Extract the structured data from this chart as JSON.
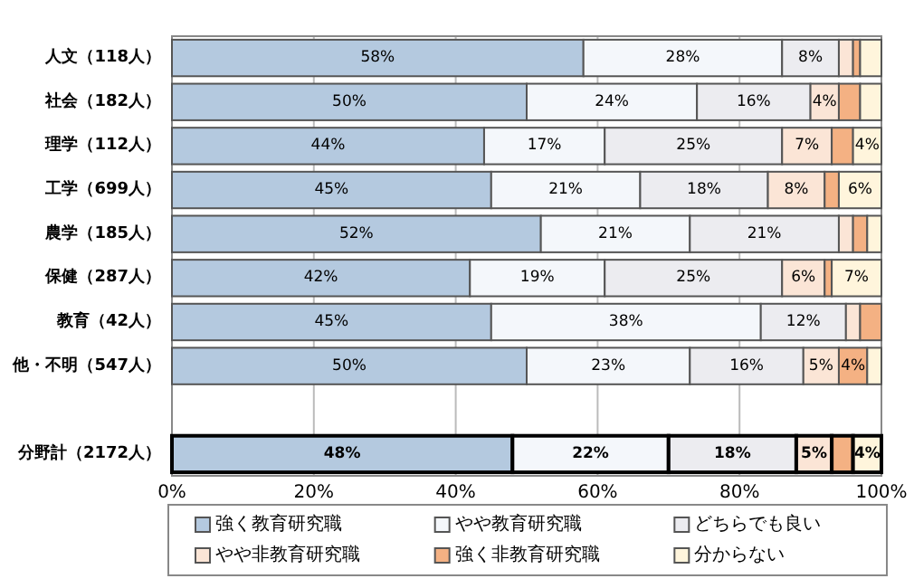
{
  "chart_data": {
    "type": "bar",
    "orientation": "horizontal",
    "stacked": true,
    "categories": [
      "人文（118人）",
      "社会（182人）",
      "理学（112人）",
      "工学（699人）",
      "農学（185人）",
      "保健（287人）",
      "教育（42人）",
      "他・不明（547人）",
      null,
      "分野計（2172人）"
    ],
    "series": [
      {
        "name": "強く教育研究職",
        "color": "#b4c9df",
        "values": [
          58,
          50,
          44,
          45,
          52,
          42,
          45,
          50,
          null,
          48
        ],
        "value_labels": [
          "58%",
          "50%",
          "44%",
          "45%",
          "52%",
          "42%",
          "45%",
          "50%",
          null,
          "48%"
        ]
      },
      {
        "name": "やや教育研究職",
        "color": "#f4f7fb",
        "values": [
          28,
          24,
          17,
          21,
          21,
          19,
          38,
          23,
          null,
          22
        ],
        "value_labels": [
          "28%",
          "24%",
          "17%",
          "21%",
          "21%",
          "19%",
          "38%",
          "23%",
          null,
          "22%"
        ]
      },
      {
        "name": "どちらでも良い",
        "color": "#ececf0",
        "values": [
          8,
          16,
          25,
          18,
          21,
          25,
          12,
          16,
          null,
          18
        ],
        "value_labels": [
          "8%",
          "16%",
          "25%",
          "18%",
          "21%",
          "25%",
          "12%",
          "16%",
          null,
          "18%"
        ]
      },
      {
        "name": "やや非教育研究職",
        "color": "#fbe5d6",
        "values": [
          2,
          4,
          7,
          8,
          2,
          6,
          2,
          5,
          null,
          5
        ],
        "value_labels": [
          null,
          "4%",
          "7%",
          "8%",
          null,
          "6%",
          null,
          "5%",
          null,
          "5%"
        ]
      },
      {
        "name": "強く非教育研究職",
        "color": "#f4b183",
        "values": [
          1,
          3,
          3,
          2,
          2,
          1,
          3,
          4,
          null,
          3
        ],
        "value_labels": [
          null,
          null,
          null,
          null,
          null,
          null,
          null,
          "4%",
          null,
          null
        ]
      },
      {
        "name": "分からない",
        "color": "#fff5dc",
        "values": [
          3,
          3,
          4,
          6,
          2,
          7,
          null,
          2,
          null,
          4
        ],
        "value_labels": [
          null,
          null,
          "4%",
          "6%",
          null,
          "7%",
          null,
          null,
          null,
          "4%"
        ]
      }
    ],
    "xlim": [
      0,
      100
    ],
    "xticks": [
      {
        "value": 0,
        "label": "0%"
      },
      {
        "value": 20,
        "label": "20%"
      },
      {
        "value": 40,
        "label": "40%"
      },
      {
        "value": 60,
        "label": "60%"
      },
      {
        "value": 80,
        "label": "80%"
      },
      {
        "value": 100,
        "label": "100%"
      }
    ],
    "grid": "x",
    "legend": "bottom"
  }
}
